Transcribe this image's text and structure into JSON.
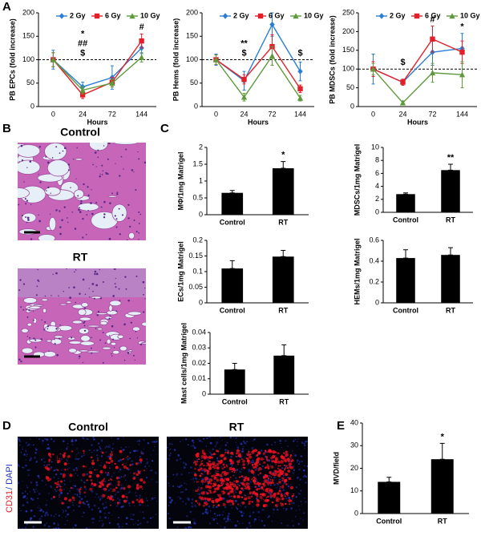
{
  "panel_labels": [
    "A",
    "B",
    "C",
    "D",
    "E"
  ],
  "images": {
    "B": {
      "titles": [
        "Control",
        "RT"
      ]
    },
    "D": {
      "titles": [
        "Control",
        "RT"
      ],
      "stain": [
        "CD31",
        "/ DAPI"
      ]
    }
  },
  "chart_data": [
    {
      "type": "line",
      "ylabel": "PB EPCs (fold increase)",
      "xlabel": "Hours",
      "categories": [
        "0",
        "24",
        "72",
        "144"
      ],
      "ylim": [
        0,
        200
      ],
      "yticks": [
        0,
        50,
        100,
        150,
        200
      ],
      "reference_line": 100,
      "series": [
        {
          "name": "2 Gy",
          "color": "#2a7fd4",
          "marker": "diamond",
          "values": [
            100,
            42,
            62,
            125
          ],
          "errors": [
            20,
            10,
            25,
            12
          ]
        },
        {
          "name": "6 Gy",
          "color": "#e3202a",
          "marker": "square",
          "values": [
            100,
            25,
            52,
            140
          ],
          "errors": [
            15,
            8,
            10,
            15
          ]
        },
        {
          "name": "10 Gy",
          "color": "#5e9a3c",
          "marker": "triangle",
          "values": [
            100,
            35,
            50,
            105
          ],
          "errors": [
            15,
            8,
            8,
            10
          ]
        }
      ],
      "annotations": [
        {
          "category": "24",
          "text": "*"
        },
        {
          "category": "24",
          "text": "##"
        },
        {
          "category": "24",
          "text": "$"
        },
        {
          "category": "144",
          "text": "#"
        }
      ]
    },
    {
      "type": "line",
      "ylabel": "PB Hems (fold increase)",
      "xlabel": "Hours",
      "categories": [
        "0",
        "24",
        "72",
        "144"
      ],
      "ylim": [
        0,
        200
      ],
      "yticks": [
        0,
        50,
        100,
        150,
        200
      ],
      "reference_line": 100,
      "series": [
        {
          "name": "2 Gy",
          "color": "#2a7fd4",
          "marker": "diamond",
          "values": [
            100,
            55,
            175,
            75
          ],
          "errors": [
            12,
            20,
            25,
            20
          ]
        },
        {
          "name": "6 Gy",
          "color": "#e3202a",
          "marker": "square",
          "values": [
            100,
            58,
            128,
            38
          ],
          "errors": [
            10,
            10,
            25,
            8
          ]
        },
        {
          "name": "10 Gy",
          "color": "#5e9a3c",
          "marker": "triangle",
          "values": [
            100,
            20,
            108,
            18
          ],
          "errors": [
            10,
            8,
            20,
            6
          ]
        }
      ],
      "annotations": [
        {
          "category": "24",
          "text": "**"
        },
        {
          "category": "24",
          "text": "$"
        },
        {
          "category": "144",
          "text": "$"
        }
      ]
    },
    {
      "type": "line",
      "ylabel": "PB MDSCs (fold increase)",
      "xlabel": "Hours",
      "categories": [
        "0",
        "24",
        "72",
        "144"
      ],
      "ylim": [
        0,
        250
      ],
      "yticks": [
        0,
        50,
        100,
        150,
        200,
        250
      ],
      "reference_line": 100,
      "series": [
        {
          "name": "2 Gy",
          "color": "#2a7fd4",
          "marker": "diamond",
          "values": [
            100,
            65,
            145,
            155
          ],
          "errors": [
            40,
            8,
            35,
            40
          ]
        },
        {
          "name": "6 Gy",
          "color": "#e3202a",
          "marker": "square",
          "values": [
            100,
            65,
            180,
            145
          ],
          "errors": [
            20,
            8,
            35,
            30
          ]
        },
        {
          "name": "10 Gy",
          "color": "#5e9a3c",
          "marker": "triangle",
          "values": [
            100,
            10,
            90,
            85
          ],
          "errors": [
            15,
            5,
            25,
            35
          ]
        }
      ],
      "annotations": [
        {
          "category": "24",
          "text": "$"
        },
        {
          "category": "72",
          "text": "#"
        },
        {
          "category": "144",
          "text": "*"
        }
      ]
    },
    {
      "type": "bar",
      "ylabel": "MΦ/1mg Matrigel",
      "categories": [
        "Control",
        "RT"
      ],
      "color": "#000000",
      "ylim": [
        0,
        2
      ],
      "yticks": [
        0,
        0.5,
        1,
        1.5,
        2
      ],
      "values": [
        0.65,
        1.38
      ],
      "errors": [
        0.07,
        0.2
      ],
      "annotations": [
        {
          "category": "RT",
          "text": "*"
        }
      ]
    },
    {
      "type": "bar",
      "ylabel": "MDSCs/1mg Matrigel",
      "categories": [
        "Control",
        "RT"
      ],
      "color": "#000000",
      "ylim": [
        0,
        10
      ],
      "yticks": [
        0,
        2,
        4,
        6,
        8,
        10
      ],
      "values": [
        2.8,
        6.5
      ],
      "errors": [
        0.2,
        0.9
      ],
      "annotations": [
        {
          "category": "RT",
          "text": "**"
        }
      ]
    },
    {
      "type": "bar",
      "ylabel": "ECs/1mg Matrigel",
      "categories": [
        "Control",
        "RT"
      ],
      "color": "#000000",
      "ylim": [
        0,
        0.2
      ],
      "yticks": [
        0,
        0.05,
        0.1,
        0.15,
        0.2
      ],
      "values": [
        0.11,
        0.148
      ],
      "errors": [
        0.025,
        0.02
      ]
    },
    {
      "type": "bar",
      "ylabel": "HEMs/1mg Matrigel",
      "categories": [
        "Control",
        "RT"
      ],
      "color": "#000000",
      "ylim": [
        0,
        0.6
      ],
      "yticks": [
        0,
        0.2,
        0.4,
        0.6
      ],
      "values": [
        0.43,
        0.46
      ],
      "errors": [
        0.08,
        0.07
      ]
    },
    {
      "type": "bar",
      "ylabel": "Mast cells/1mg Matrigel",
      "categories": [
        "Control",
        "RT"
      ],
      "color": "#000000",
      "ylim": [
        0,
        0.04
      ],
      "yticks": [
        0,
        0.01,
        0.02,
        0.03,
        0.04
      ],
      "values": [
        0.016,
        0.025
      ],
      "errors": [
        0.004,
        0.007
      ]
    },
    {
      "type": "bar",
      "ylabel": "MVD/field",
      "categories": [
        "Control",
        "RT"
      ],
      "color": "#000000",
      "ylim": [
        0,
        40
      ],
      "yticks": [
        0,
        10,
        20,
        30,
        40
      ],
      "values": [
        14,
        24
      ],
      "errors": [
        2,
        7
      ],
      "annotations": [
        {
          "category": "RT",
          "text": "*"
        }
      ]
    }
  ]
}
